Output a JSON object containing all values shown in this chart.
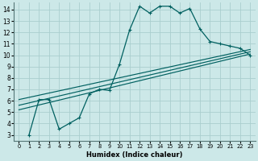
{
  "xlabel": "Humidex (Indice chaleur)",
  "bg_color": "#cce8e8",
  "grid_color": "#aacece",
  "line_color": "#006060",
  "xlim": [
    -0.5,
    23.5
  ],
  "ylim": [
    2.5,
    14.6
  ],
  "xticks": [
    0,
    1,
    2,
    3,
    4,
    5,
    6,
    7,
    8,
    9,
    10,
    11,
    12,
    13,
    14,
    15,
    16,
    17,
    18,
    19,
    20,
    21,
    22,
    23
  ],
  "yticks": [
    3,
    4,
    5,
    6,
    7,
    8,
    9,
    10,
    11,
    12,
    13,
    14
  ],
  "curve1_x": [
    1,
    2,
    3,
    4,
    5,
    6,
    7,
    8,
    9,
    10,
    11,
    12,
    13,
    14,
    15,
    16,
    17,
    18,
    19,
    20,
    21,
    22,
    23
  ],
  "curve1_y": [
    3.0,
    6.1,
    6.1,
    3.5,
    4.0,
    4.5,
    6.6,
    7.0,
    6.9,
    9.2,
    12.2,
    14.3,
    13.7,
    14.3,
    14.3,
    13.7,
    14.1,
    12.3,
    11.2,
    11.0,
    10.8,
    10.6,
    10.0
  ],
  "line1_x": [
    0,
    23
  ],
  "line1_y": [
    5.2,
    10.1
  ],
  "line2_x": [
    0,
    23
  ],
  "line2_y": [
    5.6,
    10.3
  ],
  "line3_x": [
    0,
    23
  ],
  "line3_y": [
    6.1,
    10.5
  ]
}
